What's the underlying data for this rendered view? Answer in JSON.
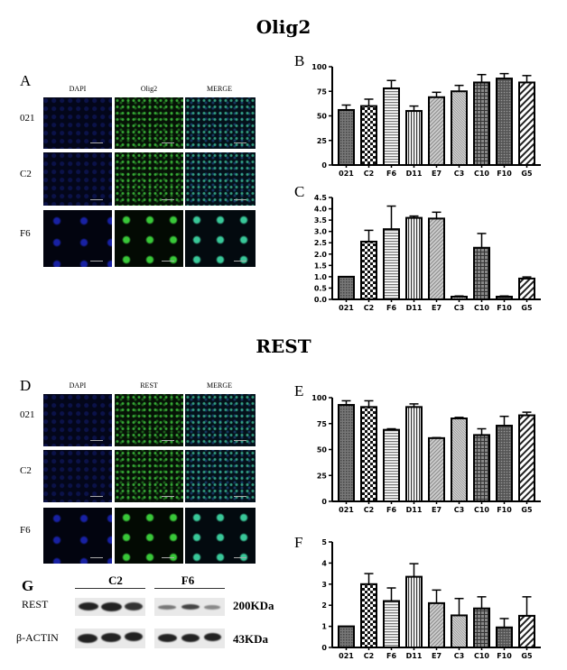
{
  "titles": {
    "olig2": "Olig2",
    "rest": "REST"
  },
  "panel_letters": {
    "A": "A",
    "B": "B",
    "C": "C",
    "D": "D",
    "E": "E",
    "F": "F",
    "G": "G"
  },
  "image_panels": {
    "A": {
      "columns": [
        "DAPI",
        "Olig2",
        "MERGE"
      ],
      "rows": [
        "021",
        "C2",
        "F6"
      ]
    },
    "D": {
      "columns": [
        "DAPI",
        "REST",
        "MERGE"
      ],
      "rows": [
        "021",
        "C2",
        "F6"
      ]
    }
  },
  "western_blot": {
    "groups": [
      "C2",
      "F6"
    ],
    "rows": [
      {
        "label": "REST",
        "size": "200KDa"
      },
      {
        "label": "β-ACTIN",
        "size": "43KDa"
      }
    ]
  },
  "chart_data": [
    {
      "panel": "B",
      "type": "bar",
      "categories": [
        "021",
        "C2",
        "F6",
        "D11",
        "E7",
        "C3",
        "C10",
        "F10",
        "G5"
      ],
      "values": [
        56,
        60,
        78,
        55,
        69,
        75,
        84,
        88,
        84
      ],
      "errors": [
        5,
        7,
        8,
        5,
        5,
        6,
        8,
        5,
        7
      ],
      "ylim": [
        0,
        100
      ],
      "yticks": [
        "0",
        "25",
        "50",
        "75",
        "100"
      ],
      "error_bars": true,
      "grid": false
    },
    {
      "panel": "C",
      "type": "bar",
      "categories": [
        "021",
        "C2",
        "F6",
        "D11",
        "E7",
        "C3",
        "C10",
        "F10",
        "G5"
      ],
      "values": [
        1.0,
        2.55,
        3.1,
        3.6,
        3.57,
        0.12,
        2.28,
        0.12,
        0.92
      ],
      "errors": [
        0,
        0.5,
        1.02,
        0.08,
        0.28,
        0.03,
        0.63,
        0.03,
        0.07
      ],
      "ylim": [
        0,
        4.5
      ],
      "yticks": [
        "0.0",
        "0.5",
        "1.0",
        "1.5",
        "2.0",
        "2.5",
        "3.0",
        "3.5",
        "4.0",
        "4.5"
      ],
      "error_bars": true,
      "grid": false
    },
    {
      "panel": "E",
      "type": "bar",
      "categories": [
        "021",
        "C2",
        "F6",
        "D11",
        "E7",
        "C3",
        "C10",
        "F10",
        "G5"
      ],
      "values": [
        93,
        91,
        69,
        91,
        61,
        80,
        64,
        73,
        83
      ],
      "errors": [
        4,
        6,
        1,
        3,
        0.5,
        1,
        6,
        9,
        3
      ],
      "ylim": [
        0,
        100
      ],
      "yticks": [
        "0",
        "25",
        "50",
        "75",
        "100"
      ],
      "error_bars": true,
      "grid": false
    },
    {
      "panel": "F",
      "type": "bar",
      "categories": [
        "021",
        "C2",
        "F6",
        "D11",
        "E7",
        "C3",
        "C10",
        "F10",
        "G5"
      ],
      "values": [
        1.0,
        3.0,
        2.2,
        3.35,
        2.1,
        1.52,
        1.85,
        0.95,
        1.5
      ],
      "errors": [
        0,
        0.5,
        0.62,
        0.62,
        0.62,
        0.8,
        0.55,
        0.42,
        0.9
      ],
      "ylim": [
        0,
        5
      ],
      "yticks": [
        "0",
        "1",
        "2",
        "3",
        "4",
        "5"
      ],
      "error_bars": true,
      "grid": false
    }
  ]
}
